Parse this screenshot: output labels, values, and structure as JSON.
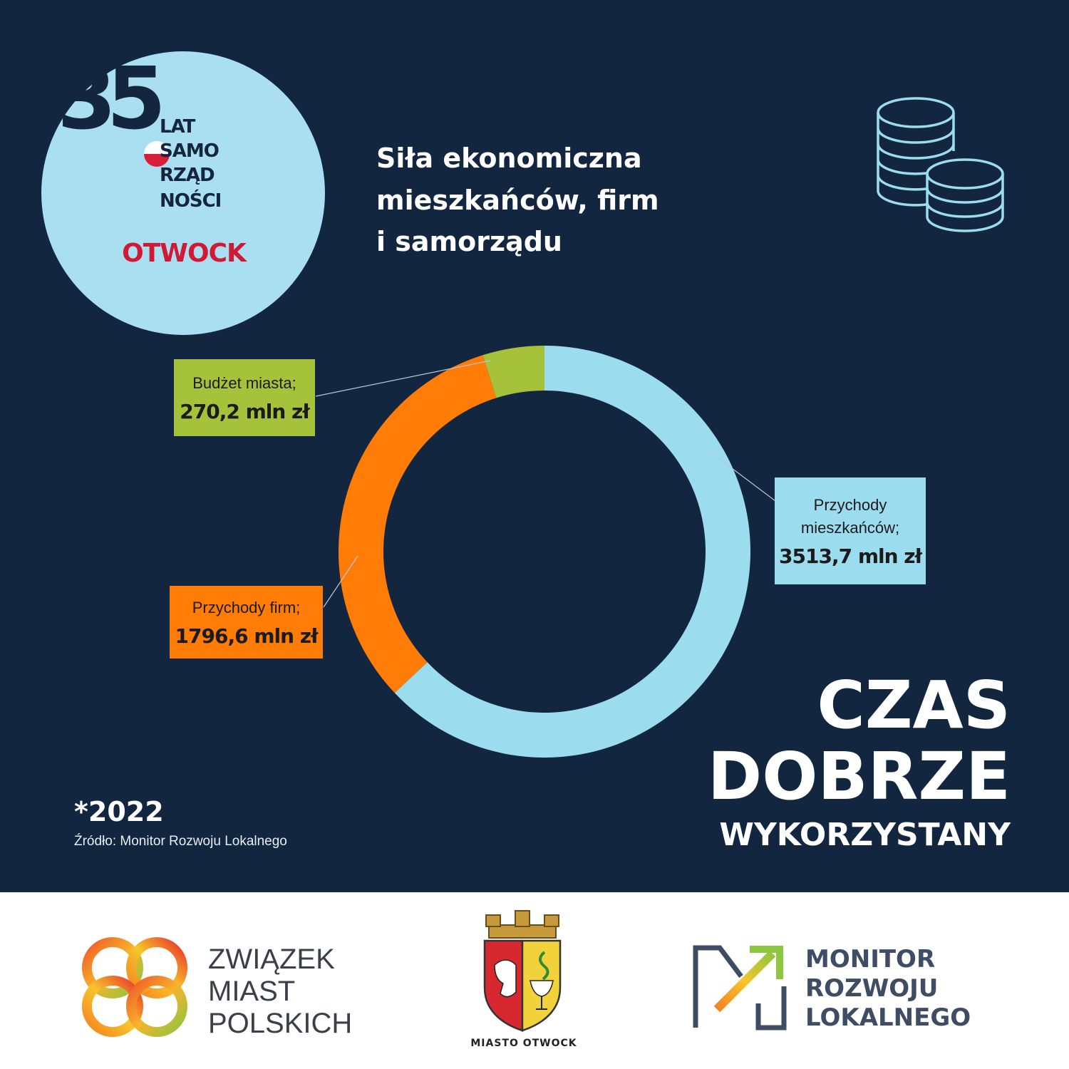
{
  "badge": {
    "number": "35",
    "lines": [
      "LAT",
      "SAMO",
      "RZĄD",
      "NOŚCI"
    ],
    "city": "OTWOCK"
  },
  "title_lines": [
    "Siła ekonomiczna",
    "mieszkańców, firm",
    "i samorządu"
  ],
  "icons": {
    "coins": "coins-stack-icon"
  },
  "chart_data": {
    "type": "pie",
    "donut": true,
    "title": "Siła ekonomiczna mieszkańców, firm i samorządu",
    "unit": "mln zł",
    "slices": [
      {
        "name": "Przychody mieszkańców",
        "value": 3513.7,
        "display": "3513,7 mln zł",
        "color": "#9bdcee"
      },
      {
        "name": "Przychody firm",
        "value": 1796.6,
        "display": "1796,6 mln zł",
        "color": "#ff7c06"
      },
      {
        "name": "Budżet miasta",
        "value": 270.2,
        "display": "270,2 mln zł",
        "color": "#a6c23a"
      }
    ]
  },
  "labels": {
    "budzet": {
      "name": "Budżet miasta;",
      "value": "270,2 mln zł"
    },
    "mieszkancy": {
      "name_1": "Przychody",
      "name_2": "mieszkańców;",
      "value": "3513,7 mln zł"
    },
    "firmy": {
      "name": "Przychody firm;",
      "value": "1796,6 mln zł"
    }
  },
  "year_note": "*2022",
  "source_note": "Źródło: Monitor Rozwoju Lokalnego",
  "slogan": [
    "CZAS",
    "DOBRZE",
    "WYKORZYSTANY"
  ],
  "partners": {
    "zmp": [
      "ZWIĄZEK",
      "MIAST",
      "POLSKICH"
    ],
    "otwock": "MIASTO OTWOCK",
    "mrl": [
      "MONITOR",
      "ROZWOJU",
      "LOKALNEGO"
    ]
  },
  "colors": {
    "background": "#13263f",
    "badge": "#a9dff0",
    "accent_red": "#d01a35"
  }
}
